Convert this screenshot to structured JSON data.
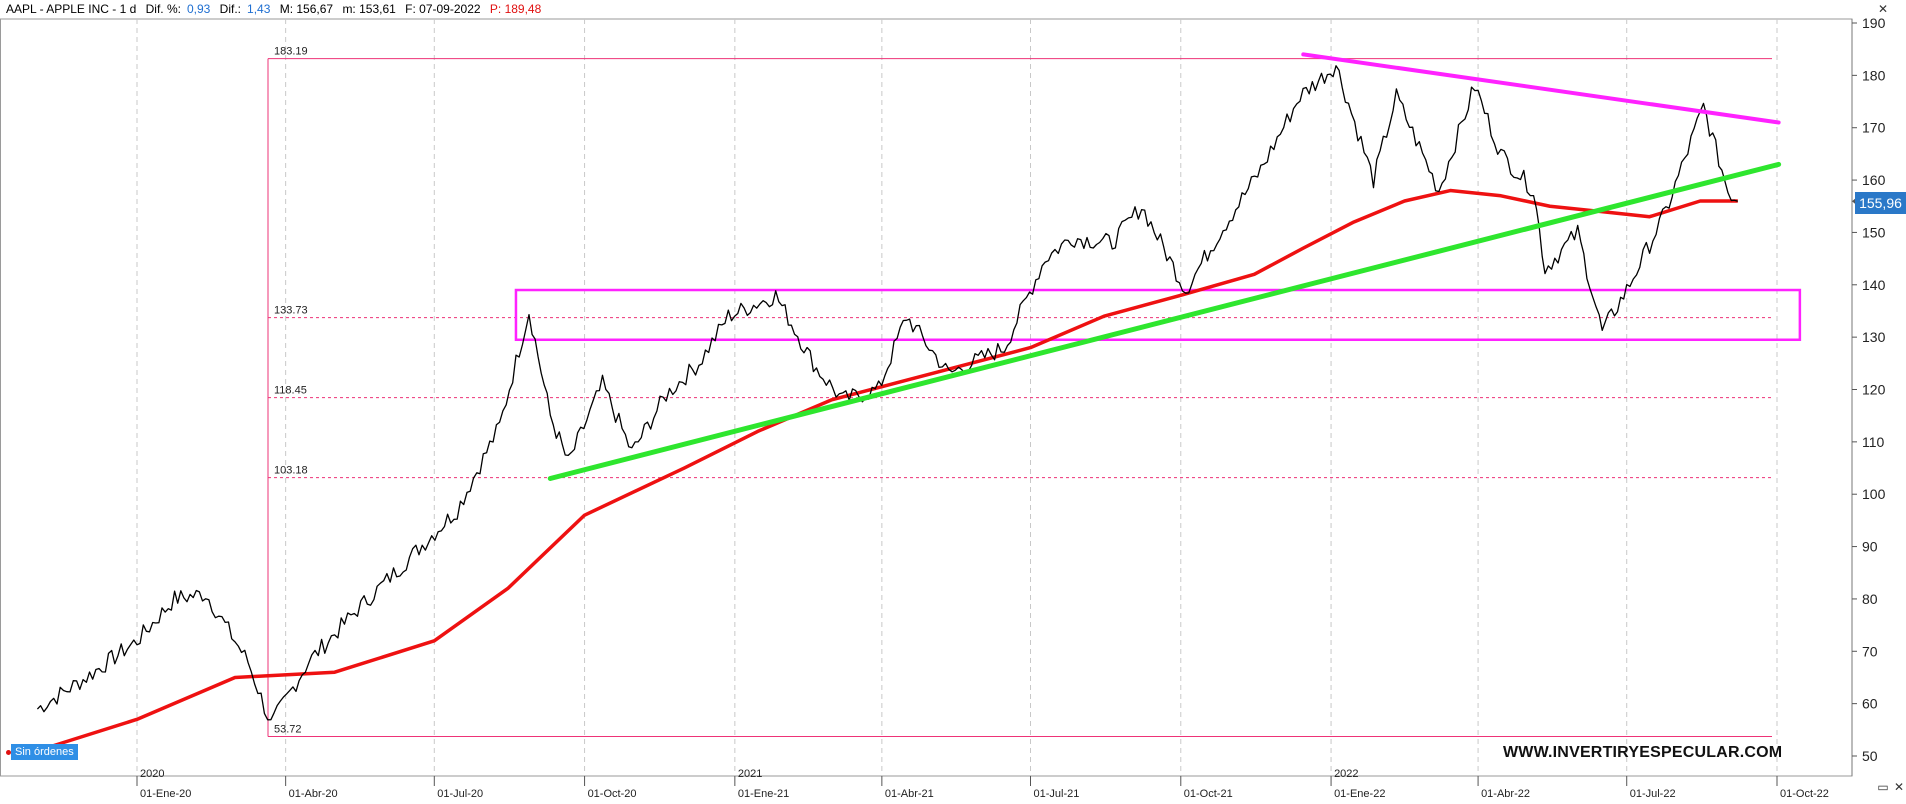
{
  "header": {
    "symbol": "AAPL - APPLE INC - 1 d",
    "dif_pct_label": "Dif. %:",
    "dif_pct_value": "0,93",
    "dif_label": "Dif.:",
    "dif_value": "1,43",
    "max_label": "M: 156,67",
    "min_label": "m: 153,61",
    "date_label": "F: 07-09-2022",
    "prev_label": "P: 189,48"
  },
  "window_controls": {
    "close": "✕",
    "min_restore": "▭",
    "close2": "✕"
  },
  "status": {
    "orders_label": "Sin órdenes"
  },
  "watermark": "WWW.INVERTIRYESPECULAR.COM",
  "current_price_label": "155,96",
  "colors": {
    "price": "#000000",
    "ma": "#ee1111",
    "support_line": "#2ee62e",
    "resistance": "#ff22ff",
    "grid": "#c8c8c8",
    "hline": "#ee3377",
    "price_tag": "#2a78c8"
  },
  "chart_data": {
    "type": "line",
    "title": "AAPL - APPLE INC - 1 d",
    "ylim": [
      47,
      191
    ],
    "y_ticks": [
      50,
      60,
      70,
      80,
      90,
      100,
      110,
      120,
      130,
      140,
      150,
      160,
      170,
      180,
      190
    ],
    "x_ticks": [
      {
        "label": "01-Ene-20",
        "date": "2020-01-01"
      },
      {
        "label": "01-Abr-20",
        "date": "2020-04-01"
      },
      {
        "label": "01-Jul-20",
        "date": "2020-07-01"
      },
      {
        "label": "01-Oct-20",
        "date": "2020-10-01"
      },
      {
        "label": "01-Ene-21",
        "date": "2021-01-01"
      },
      {
        "label": "01-Abr-21",
        "date": "2021-04-01"
      },
      {
        "label": "01-Jul-21",
        "date": "2021-07-01"
      },
      {
        "label": "01-Oct-21",
        "date": "2021-10-01"
      },
      {
        "label": "01-Ene-22",
        "date": "2022-01-01"
      },
      {
        "label": "01-Abr-22",
        "date": "2022-04-01"
      },
      {
        "label": "01-Jul-22",
        "date": "2022-07-01"
      },
      {
        "label": "01-Oct-22",
        "date": "2022-10-01"
      }
    ],
    "year_labels": [
      {
        "label": "2020",
        "date": "2020-01-01"
      },
      {
        "label": "2021",
        "date": "2021-01-01"
      },
      {
        "label": "2022",
        "date": "2022-01-01"
      }
    ],
    "grid": true,
    "series": [
      {
        "key": "price",
        "x": [
          "2019-11-01",
          "2019-12-01",
          "2020-01-01",
          "2020-01-24",
          "2020-02-12",
          "2020-03-09",
          "2020-03-23",
          "2020-04-15",
          "2020-05-15",
          "2020-06-10",
          "2020-07-15",
          "2020-08-10",
          "2020-08-28",
          "2020-09-10",
          "2020-09-21",
          "2020-10-12",
          "2020-10-30",
          "2020-11-20",
          "2020-12-10",
          "2020-12-28",
          "2021-01-26",
          "2021-02-20",
          "2021-03-08",
          "2021-03-30",
          "2021-04-16",
          "2021-05-12",
          "2021-06-15",
          "2021-07-10",
          "2021-07-26",
          "2021-08-20",
          "2021-09-07",
          "2021-10-04",
          "2021-10-25",
          "2021-11-19",
          "2021-12-13",
          "2021-12-28",
          "2022-01-04",
          "2022-01-27",
          "2022-02-10",
          "2022-03-08",
          "2022-03-30",
          "2022-04-15",
          "2022-05-05",
          "2022-05-12",
          "2022-06-01",
          "2022-06-16",
          "2022-07-01",
          "2022-07-25",
          "2022-08-17",
          "2022-09-01",
          "2022-09-07"
        ],
        "y": [
          59,
          65,
          72,
          80,
          81,
          68,
          56,
          68,
          78,
          86,
          97,
          113,
          135,
          115,
          106,
          121,
          108,
          119,
          125,
          134,
          138,
          124,
          118,
          120,
          134,
          123,
          128,
          145,
          149,
          148,
          155,
          139,
          150,
          162,
          176,
          180,
          182,
          160,
          176,
          158,
          178,
          165,
          158,
          143,
          150,
          131,
          139,
          154,
          174,
          158,
          155.96
        ]
      },
      {
        "key": "ma",
        "x": [
          "2019-11-01",
          "2020-01-01",
          "2020-03-01",
          "2020-05-01",
          "2020-07-01",
          "2020-08-15",
          "2020-10-01",
          "2020-12-01",
          "2021-01-15",
          "2021-03-01",
          "2021-05-01",
          "2021-07-01",
          "2021-08-15",
          "2021-10-01",
          "2021-11-15",
          "2021-12-15",
          "2022-01-15",
          "2022-02-15",
          "2022-03-15",
          "2022-04-15",
          "2022-05-15",
          "2022-06-15",
          "2022-07-15",
          "2022-08-15",
          "2022-09-07"
        ],
        "y": [
          51,
          57,
          65,
          66,
          72,
          82,
          96,
          105,
          112,
          118,
          123,
          128,
          134,
          138,
          142,
          147,
          152,
          156,
          158,
          157,
          155,
          154,
          153,
          156,
          156
        ]
      }
    ],
    "annotations": {
      "support_line": {
        "from": [
          "2020-09-10",
          103
        ],
        "to": [
          "2022-10-02",
          163
        ]
      },
      "resistance_line": {
        "from": [
          "2021-12-15",
          184
        ],
        "to": [
          "2022-10-02",
          171
        ]
      },
      "range_box": {
        "from_date": "2020-08-20",
        "to_date": "2022-10-15",
        "low": 129.5,
        "high": 139
      }
    },
    "levels": [
      {
        "value": 183.19,
        "label": "183.19"
      },
      {
        "value": 133.73,
        "label": "133.73"
      },
      {
        "value": 118.45,
        "label": "118.45"
      },
      {
        "value": 103.18,
        "label": "103.18"
      },
      {
        "value": 53.72,
        "label": "53.72"
      }
    ]
  }
}
